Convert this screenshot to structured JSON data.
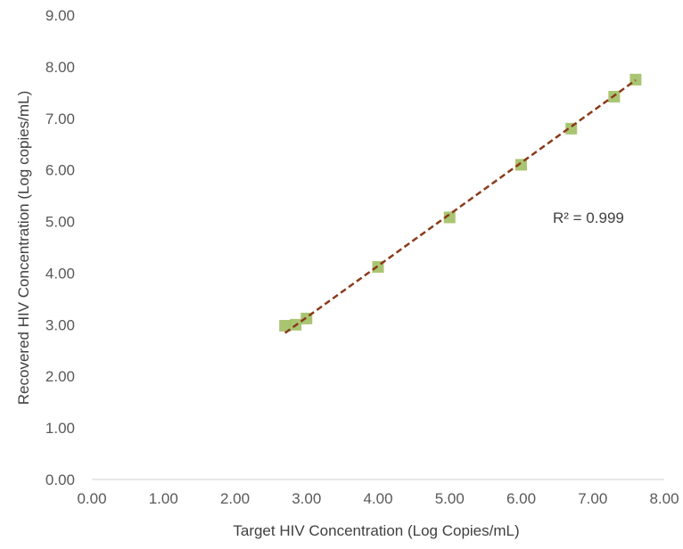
{
  "chart_data": {
    "type": "scatter",
    "title": "",
    "xlabel": "Target HIV Concentration  (Log Copies/mL)",
    "ylabel": "Recovered  HIV Concentration  (Log copies/mL)",
    "xlim": [
      0,
      8
    ],
    "ylim": [
      0,
      9
    ],
    "x_ticks": [
      "0.00",
      "1.00",
      "2.00",
      "3.00",
      "4.00",
      "5.00",
      "6.00",
      "7.00",
      "8.00"
    ],
    "y_ticks": [
      "0.00",
      "1.00",
      "2.00",
      "3.00",
      "4.00",
      "5.00",
      "6.00",
      "7.00",
      "8.00",
      "9.00"
    ],
    "grid": false,
    "series": [
      {
        "points": [
          {
            "x": 2.7,
            "y": 2.98
          },
          {
            "x": 2.85,
            "y": 3.0
          },
          {
            "x": 3.0,
            "y": 3.12
          },
          {
            "x": 4.0,
            "y": 4.12
          },
          {
            "x": 5.0,
            "y": 5.08
          },
          {
            "x": 6.0,
            "y": 6.1
          },
          {
            "x": 6.7,
            "y": 6.8
          },
          {
            "x": 7.3,
            "y": 7.42
          },
          {
            "x": 7.6,
            "y": 7.75
          }
        ],
        "marker": "square",
        "color": "#9bbb59"
      }
    ],
    "trendline": {
      "type": "linear",
      "x_range": [
        2.7,
        7.6
      ],
      "slope": 1.0,
      "intercept": 0.14,
      "color": "#8b3a1a",
      "style": "dashed"
    },
    "annotations": [
      {
        "text": "R² = 0.999"
      }
    ],
    "colors": {
      "axis": "#d9d9d9",
      "marker": "#9bbb59",
      "trendline": "#8b3a1a"
    }
  }
}
